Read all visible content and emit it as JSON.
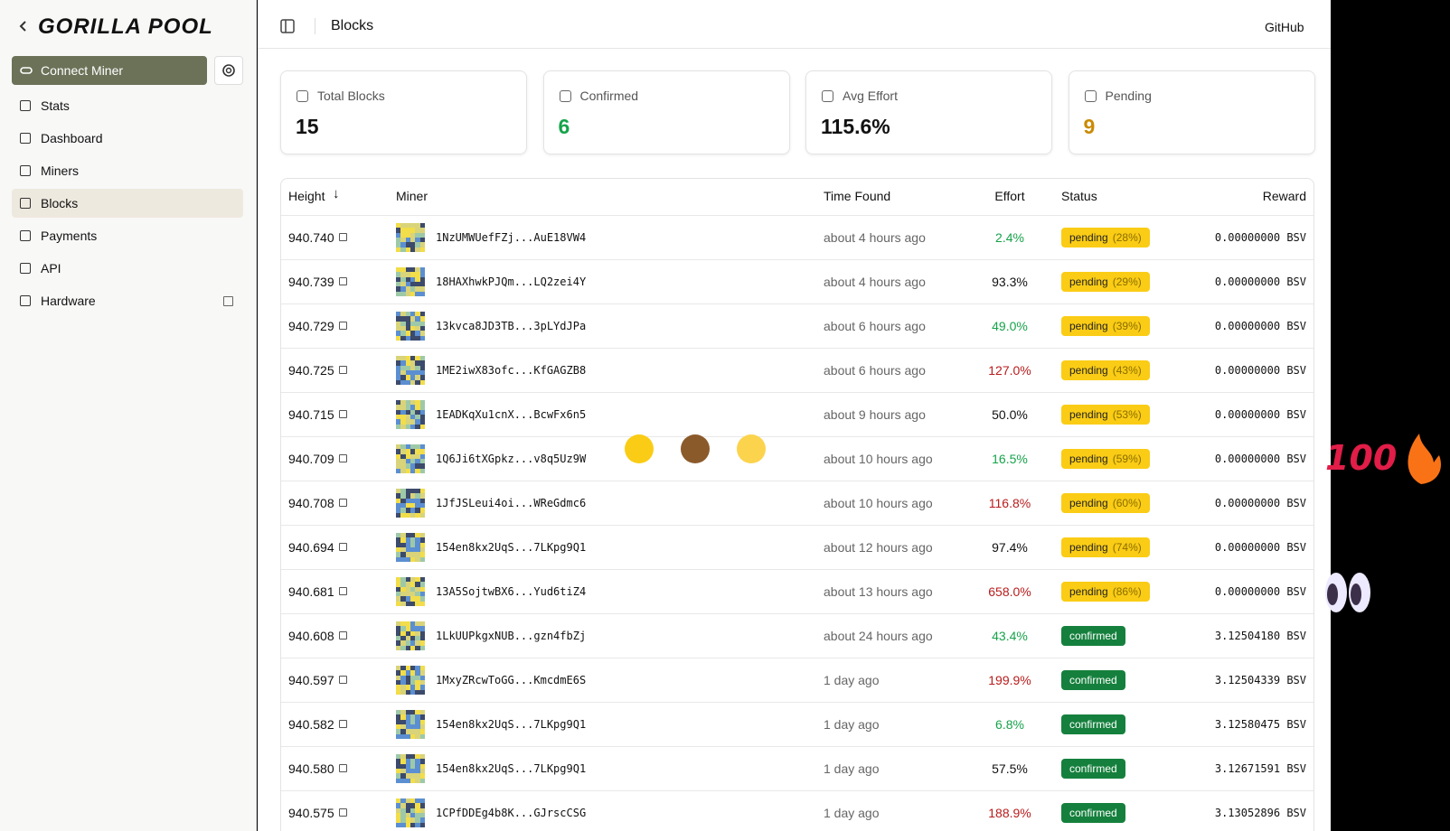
{
  "sidebar": {
    "brand": "GORILLA POOL",
    "connect": "Connect Miner",
    "nav": [
      "Stats",
      "Dashboard",
      "Miners",
      "Blocks",
      "Payments",
      "API",
      "Hardware"
    ],
    "active": 3
  },
  "header": {
    "title": "Blocks",
    "link": "GitHub"
  },
  "stats": [
    {
      "label": "Total Blocks",
      "value": "15",
      "color": "#111111"
    },
    {
      "label": "Confirmed",
      "value": "6",
      "color": "#16a34a"
    },
    {
      "label": "Avg Effort",
      "value": "115.6%",
      "color": "#111111"
    },
    {
      "label": "Pending",
      "value": "9",
      "color": "#ca8a04"
    }
  ],
  "table": {
    "headers": [
      "Height",
      "Miner",
      "Time Found",
      "Effort",
      "Status",
      "Reward"
    ],
    "rows": [
      [
        "940.740",
        "1NzUMWUefFZj...AuE18VW4",
        "about 4 hours ago",
        "2.4%",
        "#16a34a",
        "pending",
        "(28%)",
        "0.00000000 BSV"
      ],
      [
        "940.739",
        "18HAXhwkPJQm...LQ2zei4Y",
        "about 4 hours ago",
        "93.3%",
        "#111111",
        "pending",
        "(29%)",
        "0.00000000 BSV"
      ],
      [
        "940.729",
        "13kvca8JD3TB...3pLYdJPa",
        "about 6 hours ago",
        "49.0%",
        "#16a34a",
        "pending",
        "(39%)",
        "0.00000000 BSV"
      ],
      [
        "940.725",
        "1ME2iwX83ofc...KfGAGZB8",
        "about 6 hours ago",
        "127.0%",
        "#b91c1c",
        "pending",
        "(43%)",
        "0.00000000 BSV"
      ],
      [
        "940.715",
        "1EADKqXu1cnX...BcwFx6n5",
        "about 9 hours ago",
        "50.0%",
        "#111111",
        "pending",
        "(53%)",
        "0.00000000 BSV"
      ],
      [
        "940.709",
        "1Q6Ji6tXGpkz...v8q5Uz9W",
        "about 10 hours ago",
        "16.5%",
        "#16a34a",
        "pending",
        "(59%)",
        "0.00000000 BSV"
      ],
      [
        "940.708",
        "1JfJSLeui4oi...WReGdmc6",
        "about 10 hours ago",
        "116.8%",
        "#b91c1c",
        "pending",
        "(60%)",
        "0.00000000 BSV"
      ],
      [
        "940.694",
        "154en8kx2UqS...7LKpg9Q1",
        "about 12 hours ago",
        "97.4%",
        "#111111",
        "pending",
        "(74%)",
        "0.00000000 BSV"
      ],
      [
        "940.681",
        "13A5SojtwBX6...Yud6tiZ4",
        "about 13 hours ago",
        "658.0%",
        "#b91c1c",
        "pending",
        "(86%)",
        "0.00000000 BSV"
      ],
      [
        "940.608",
        "1LkUUPkgxNUB...gzn4fbZj",
        "about 24 hours ago",
        "43.4%",
        "#16a34a",
        "confirmed",
        null,
        "3.12504180 BSV"
      ],
      [
        "940.597",
        "1MxyZRcwToGG...KmcdmE6S",
        "1 day ago",
        "199.9%",
        "#b91c1c",
        "confirmed",
        null,
        "3.12504339 BSV"
      ],
      [
        "940.582",
        "154en8kx2UqS...7LKpg9Q1",
        "1 day ago",
        "6.8%",
        "#16a34a",
        "confirmed",
        null,
        "3.12580475 BSV"
      ],
      [
        "940.580",
        "154en8kx2UqS...7LKpg9Q1",
        "1 day ago",
        "57.5%",
        "#111111",
        "confirmed",
        null,
        "3.12671591 BSV"
      ],
      [
        "940.575",
        "1CPfDDEg4b8K...GJrscCSG",
        "1 day ago",
        "188.9%",
        "#b91c1c",
        "confirmed",
        null,
        "3.13052896 BSV"
      ]
    ]
  }
}
